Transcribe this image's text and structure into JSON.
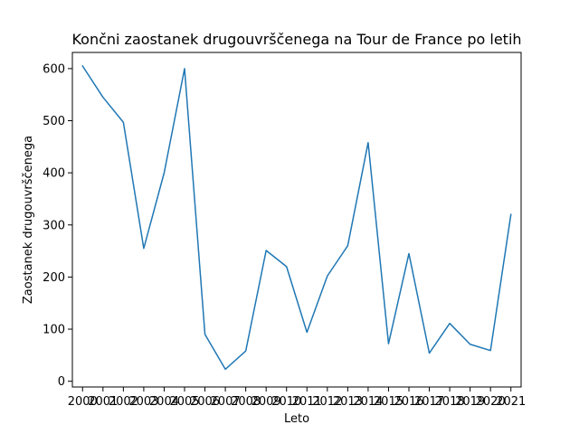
{
  "chart_data": {
    "type": "line",
    "title": "Končni zaostanek drugouvrščenega na Tour de France po letih",
    "xlabel": "Leto",
    "ylabel": "Zaostanek drugouvrščenega",
    "x": [
      2000,
      2001,
      2002,
      2003,
      2004,
      2005,
      2006,
      2007,
      2008,
      2009,
      2010,
      2011,
      2012,
      2013,
      2014,
      2015,
      2016,
      2017,
      2018,
      2019,
      2020,
      2021
    ],
    "series": [
      {
        "values": [
          605,
          545,
          497,
          255,
          400,
          600,
          90,
          23,
          58,
          251,
          220,
          94,
          202,
          260,
          458,
          72,
          245,
          54,
          111,
          71,
          59,
          320
        ],
        "color": "#1f77b4"
      }
    ],
    "xlim": [
      1999.5,
      2021.5
    ],
    "ylim": [
      -11,
      631
    ],
    "yticks": [
      0,
      100,
      200,
      300,
      400,
      500,
      600
    ],
    "grid": false,
    "legend": "none"
  }
}
